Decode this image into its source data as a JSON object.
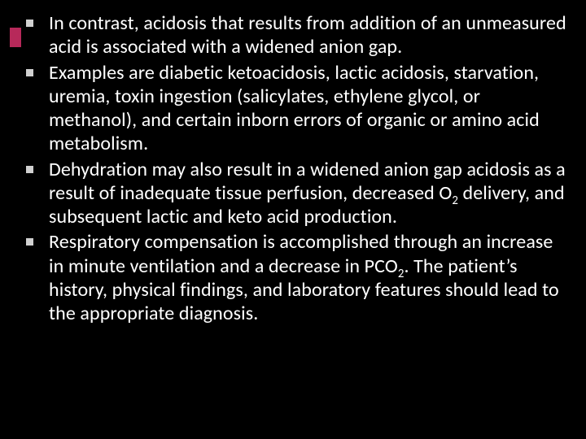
{
  "accent_color": "#b7295a",
  "marker_color": "#d0d0d0",
  "text_color": "#ffffff",
  "background_color": "#000000",
  "bullets": [
    {
      "pre": "In contrast, acidosis that results from addition of an unmeasured acid is associated with a widened anion gap."
    },
    {
      "pre": "Examples are diabetic ketoacidosis, lactic acidosis, starvation, uremia, toxin ingestion (salicylates, ethylene glycol, or methanol), and certain inborn errors of organic or amino acid metabolism."
    },
    {
      "pre": "Dehydration may also result in a widened anion gap acidosis as a result of inadequate tissue perfusion, decreased O",
      "sub1": "2",
      "mid": " delivery, and subsequent lactic and keto acid production."
    },
    {
      "pre": "Respiratory compensation is accomplished through an increase in minute ventilation and a decrease in PCO",
      "sub1": "2",
      "mid": ". The patient’s history, physical findings, and laboratory features should lead to the appropriate diagnosis."
    }
  ]
}
